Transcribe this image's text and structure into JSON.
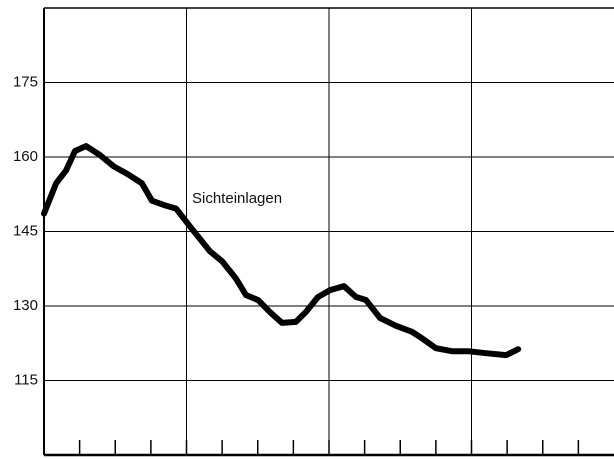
{
  "chart_data": {
    "type": "line",
    "annotation": "Sichteinlagen",
    "x": [
      0,
      0.34,
      0.62,
      0.87,
      1.18,
      1.57,
      1.96,
      2.36,
      2.75,
      3.03,
      3.42,
      3.71,
      4.1,
      4.66,
      5,
      5.39,
      5.67,
      6.01,
      6.34,
      6.68,
      7.07,
      7.35,
      7.69,
      8.03,
      8.42,
      8.76,
      9.04,
      9.43,
      9.88,
      10.33,
      10.61,
      11,
      11.45,
      11.9,
      12.41,
      12.97,
      13.31
    ],
    "values": [
      148.6,
      154.7,
      157.3,
      161.2,
      162.2,
      160.4,
      158.1,
      156.5,
      154.7,
      151.2,
      150.2,
      149.6,
      146,
      141,
      139,
      135.5,
      132.2,
      131.2,
      128.8,
      126.6,
      126.8,
      128.8,
      131.8,
      133.2,
      134,
      131.8,
      131.2,
      127.6,
      126,
      124.8,
      123.5,
      121.5,
      120.9,
      120.9,
      120.5,
      120.1,
      121.3
    ],
    "color": "#000000",
    "xlim": [
      0,
      16
    ],
    "xticks": [
      1,
      2,
      3,
      4,
      5,
      6,
      7,
      8,
      9,
      10,
      11,
      12,
      13,
      14,
      15
    ],
    "xgrid": [
      4,
      8,
      12
    ],
    "ylim": [
      100,
      190
    ],
    "yticks": [
      115,
      130,
      145,
      160,
      175
    ],
    "grid": true
  }
}
